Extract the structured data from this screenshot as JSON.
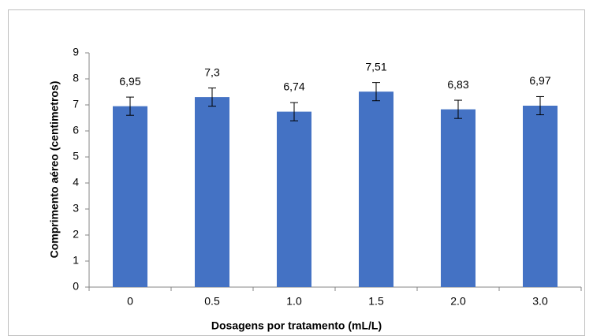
{
  "chart_data": {
    "type": "bar",
    "x_label": "Dosagens por tratamento (mL/L)",
    "y_label": "Comprimento aéreo  (centimetros)",
    "categories": [
      "0",
      "0.5",
      "1.0",
      "1.5",
      "2.0",
      "3.0"
    ],
    "values": [
      6.95,
      7.3,
      6.74,
      7.51,
      6.83,
      6.97
    ],
    "value_labels": [
      "6,95",
      "7,3",
      "6,74",
      "7,51",
      "6,83",
      "6,97"
    ],
    "errors": [
      0.35,
      0.35,
      0.35,
      0.35,
      0.35,
      0.35
    ],
    "color": "#4472c4",
    "ylim": [
      0,
      9
    ],
    "yticks": [
      0,
      1,
      2,
      3,
      4,
      5,
      6,
      7,
      8,
      9
    ],
    "grid": false
  }
}
